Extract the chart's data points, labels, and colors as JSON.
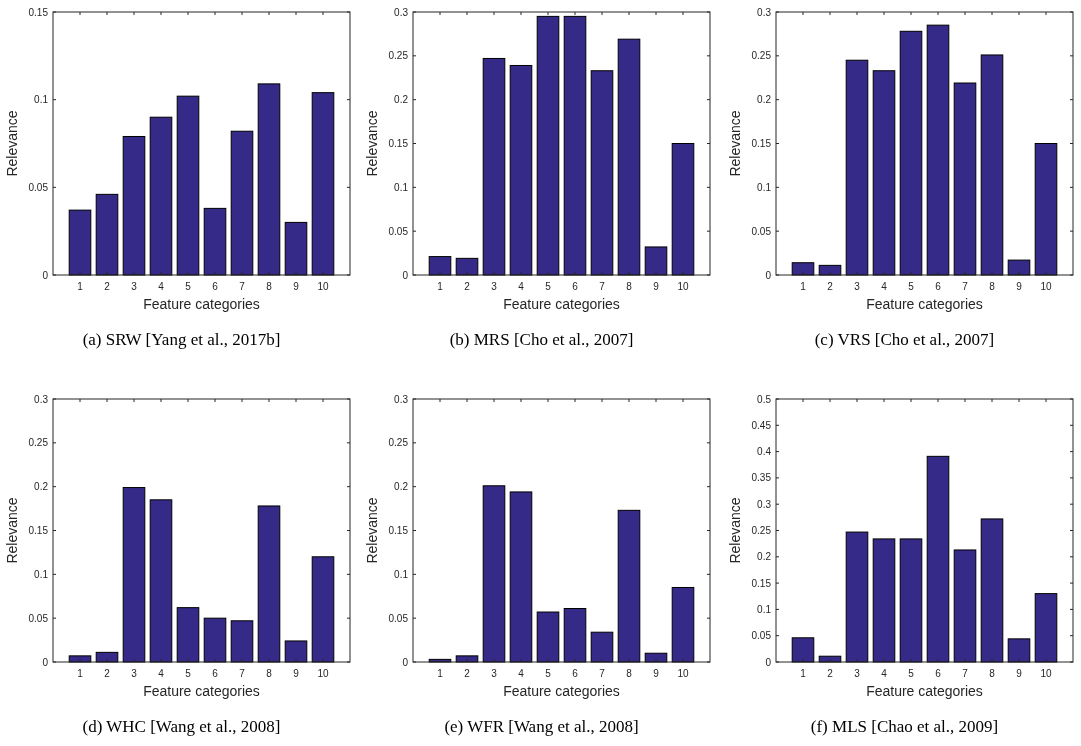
{
  "chart_data": [
    {
      "type": "bar",
      "title": "(a) SRW [Yang et al., 2017b]",
      "xlabel": "Feature categories",
      "ylabel": "Relevance",
      "categories": [
        "1",
        "2",
        "3",
        "4",
        "5",
        "6",
        "7",
        "8",
        "9",
        "10"
      ],
      "values": [
        0.037,
        0.046,
        0.079,
        0.09,
        0.102,
        0.038,
        0.082,
        0.109,
        0.03,
        0.104
      ],
      "color": "#352a87",
      "ylim": [
        0,
        0.15
      ],
      "yticks": [
        0,
        0.05,
        0.1,
        0.15
      ]
    },
    {
      "type": "bar",
      "title": "(b) MRS [Cho et al., 2007]",
      "xlabel": "Feature categories",
      "ylabel": "Relevance",
      "categories": [
        "1",
        "2",
        "3",
        "4",
        "5",
        "6",
        "7",
        "8",
        "9",
        "10"
      ],
      "values": [
        0.021,
        0.019,
        0.247,
        0.239,
        0.295,
        0.295,
        0.233,
        0.269,
        0.032,
        0.15
      ],
      "color": "#352a87",
      "ylim": [
        0,
        0.3
      ],
      "yticks": [
        0,
        0.05,
        0.1,
        0.15,
        0.2,
        0.25,
        0.3
      ]
    },
    {
      "type": "bar",
      "title": "(c) VRS [Cho et al., 2007]",
      "xlabel": "Feature categories",
      "ylabel": "Relevance",
      "categories": [
        "1",
        "2",
        "3",
        "4",
        "5",
        "6",
        "7",
        "8",
        "9",
        "10"
      ],
      "values": [
        0.014,
        0.011,
        0.245,
        0.233,
        0.278,
        0.285,
        0.219,
        0.251,
        0.017,
        0.15
      ],
      "color": "#352a87",
      "ylim": [
        0,
        0.3
      ],
      "yticks": [
        0,
        0.05,
        0.1,
        0.15,
        0.2,
        0.25,
        0.3
      ]
    },
    {
      "type": "bar",
      "title": "(d) WHC [Wang et al., 2008]",
      "xlabel": "Feature categories",
      "ylabel": "Relevance",
      "categories": [
        "1",
        "2",
        "3",
        "4",
        "5",
        "6",
        "7",
        "8",
        "9",
        "10"
      ],
      "values": [
        0.007,
        0.011,
        0.199,
        0.185,
        0.062,
        0.05,
        0.047,
        0.178,
        0.024,
        0.12
      ],
      "color": "#352a87",
      "ylim": [
        0,
        0.3
      ],
      "yticks": [
        0,
        0.05,
        0.1,
        0.15,
        0.2,
        0.25,
        0.3
      ]
    },
    {
      "type": "bar",
      "title": "(e) WFR [Wang et al., 2008]",
      "xlabel": "Feature categories",
      "ylabel": "Relevance",
      "categories": [
        "1",
        "2",
        "3",
        "4",
        "5",
        "6",
        "7",
        "8",
        "9",
        "10"
      ],
      "values": [
        0.003,
        0.007,
        0.201,
        0.194,
        0.057,
        0.061,
        0.034,
        0.173,
        0.01,
        0.085
      ],
      "color": "#352a87",
      "ylim": [
        0,
        0.3
      ],
      "yticks": [
        0,
        0.05,
        0.1,
        0.15,
        0.2,
        0.25,
        0.3
      ]
    },
    {
      "type": "bar",
      "title": "(f) MLS [Chao et al., 2009]",
      "xlabel": "Feature categories",
      "ylabel": "Relevance",
      "categories": [
        "1",
        "2",
        "3",
        "4",
        "5",
        "6",
        "7",
        "8",
        "9",
        "10"
      ],
      "values": [
        0.046,
        0.011,
        0.247,
        0.234,
        0.234,
        0.391,
        0.213,
        0.272,
        0.044,
        0.13
      ],
      "color": "#352a87",
      "ylim": [
        0,
        0.5
      ],
      "yticks": [
        0,
        0.05,
        0.1,
        0.15,
        0.2,
        0.25,
        0.3,
        0.35,
        0.4,
        0.45,
        0.5
      ]
    }
  ]
}
